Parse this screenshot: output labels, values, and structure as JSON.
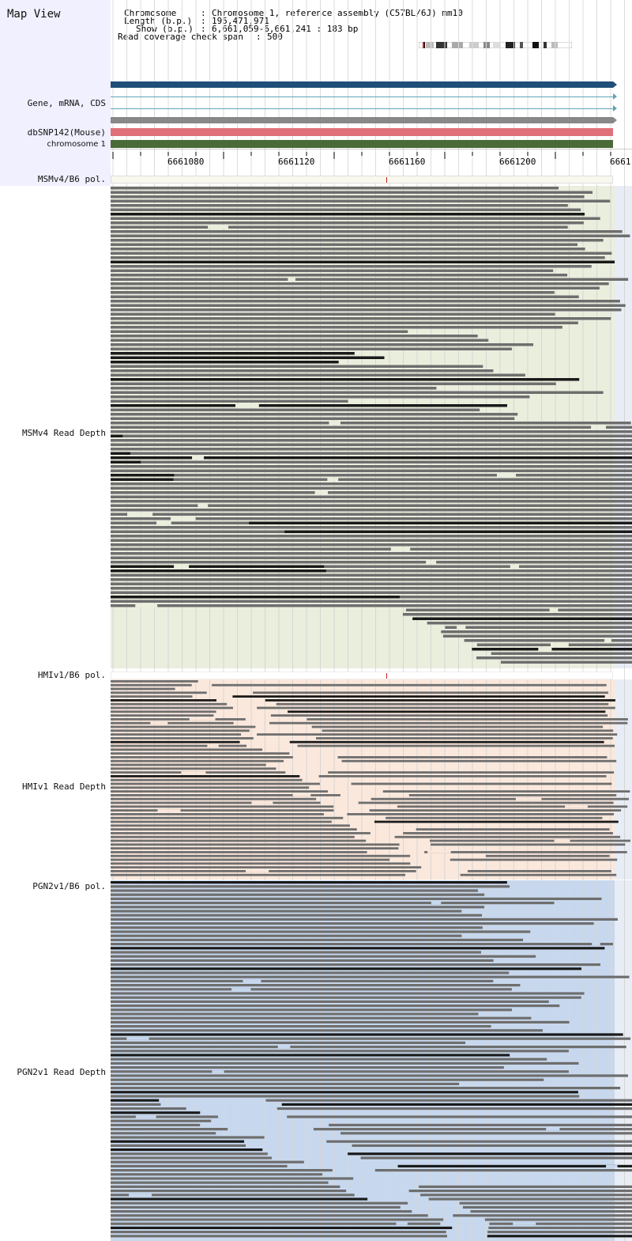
{
  "title": "Map View",
  "info": {
    "chromosome_label": "Chromosome",
    "chromosome_value": "Chromosome 1, reference assembly (C57BL/6J) mm10",
    "length_label": "Length (b.p.)",
    "length_value": "195,471,971",
    "show_label": "Show (b.p.)",
    "show_value": "6,661,059-6,661,241 : 183 bp",
    "coverage_label": "Read coverage check span",
    "coverage_value": "500"
  },
  "tracks": {
    "gene_label": "Gene, mRNA, CDS",
    "snp_label": "dbSNP142(Mouse)",
    "chrom_label": "chromosome 1"
  },
  "ruler": {
    "tick_labels": [
      "6661080",
      "6661120",
      "6661160",
      "6661200",
      "6661"
    ]
  },
  "panels": {
    "msm_pol_label": "MSMv4/B6 pol.",
    "msm_depth_label": "MSMv4 Read Depth",
    "hmi_pol_label": "HMIv1/B6 pol.",
    "hmi_depth_label": "HMIv1 Read Depth",
    "pgn_pol_label": "PGN2v1/B6 pol.",
    "pgn_depth_label": "PGN2v1 Read Depth"
  },
  "colors": {
    "gene_bar": "#1f4e79",
    "mrna_line": "#5fa5b5",
    "cds_bar": "#888888",
    "snp_bar": "#e0707a",
    "chrom_bar": "#4a6a38",
    "msm_bg": "#eaeedd",
    "hmi_bg": "#fbe8dc",
    "pgn_bg": "#c7d8ee",
    "read": "#6e6e6e",
    "read_dark": "#1a1a1a"
  }
}
